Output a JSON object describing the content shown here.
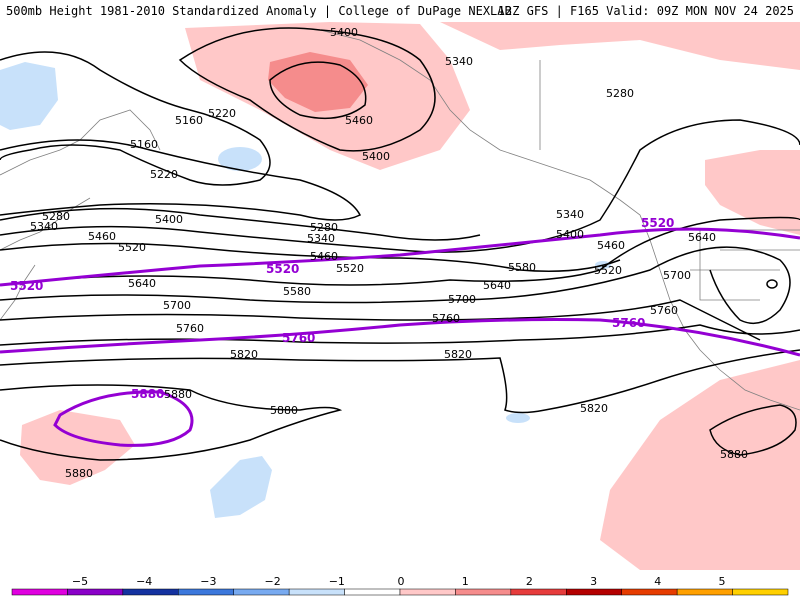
{
  "header": {
    "title_left": "500mb Height 1981-2010 Standardized Anomaly | College of DuPage NEXLAB",
    "title_right": "12Z GFS | F165 Valid: 09Z MON NOV 24 2025"
  },
  "colors": {
    "contour": "#000000",
    "highlight_contour": "#9400d3",
    "pos_1": "#ffc8c8",
    "pos_2": "#f58c8c",
    "neg_1": "#c8e1fa",
    "coast": "#808080"
  },
  "contours": {
    "labels": {
      "a": "5400",
      "b": "5340",
      "c": "5280",
      "d": "5460",
      "e": "5400",
      "f": "5220",
      "g": "5160",
      "h": "5160",
      "i": "5220",
      "j": "5280",
      "k": "5340",
      "l": "5400",
      "m": "5460",
      "n": "5520",
      "o": "5280",
      "p": "5340",
      "q": "5460",
      "r": "5520",
      "s": "5340",
      "t": "5400",
      "u": "5460",
      "v": "5520",
      "w": "5580",
      "x": "5640",
      "y": "5580",
      "z": "5640",
      "aa": "5700",
      "ab": "5700",
      "ac": "5760",
      "ad": "5760",
      "ae": "5820",
      "af": "5820",
      "ag": "5880",
      "ah": "5880",
      "ai": "5880",
      "aj": "5820",
      "ak": "5640",
      "al": "5700",
      "am": "5760",
      "an": "5880"
    },
    "highlight_labels": {
      "h1": "5520",
      "h2": "5520",
      "h3": "5520",
      "h4": "5760",
      "h5": "5760",
      "h6": "5880"
    }
  },
  "colorbar": {
    "ticks": [
      "−5",
      "−4",
      "−3",
      "−2",
      "−1",
      "0",
      "1",
      "2",
      "3",
      "4",
      "5"
    ],
    "colors": [
      "#e000e0",
      "#8a00c8",
      "#1432a0",
      "#3c78dc",
      "#78aaf0",
      "#c8e1fa",
      "#ffffff",
      "#ffc8c8",
      "#f58c8c",
      "#e63c3c",
      "#b40000",
      "#e63c00",
      "#ffa000",
      "#ffd000"
    ]
  }
}
